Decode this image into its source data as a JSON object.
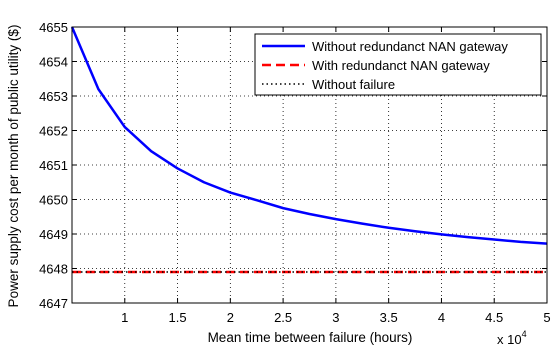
{
  "chart_data": {
    "type": "line",
    "title": "",
    "xlabel": "Mean time between failure (hours)",
    "ylabel": "Power supply cost per month of public utility ($)",
    "x_multiplier": "x 10",
    "x_multiplier_exponent": "4",
    "xlim": [
      5000,
      50000
    ],
    "ylim": [
      4647,
      4655
    ],
    "xticks": [
      10000,
      15000,
      20000,
      25000,
      30000,
      35000,
      40000,
      45000,
      50000
    ],
    "xtick_labels": [
      "1",
      "1.5",
      "2",
      "2.5",
      "3",
      "3.5",
      "4",
      "4.5",
      "5"
    ],
    "yticks": [
      4647,
      4648,
      4649,
      4650,
      4651,
      4652,
      4653,
      4654,
      4655
    ],
    "ytick_labels": [
      "4647",
      "4648",
      "4649",
      "4650",
      "4651",
      "4652",
      "4653",
      "4654",
      "4655"
    ],
    "grid": true,
    "legend_position": "top-right",
    "series": [
      {
        "name": "Without redundanct NAN gateway",
        "color": "#0000ff",
        "style": "solid",
        "x": [
          5000,
          7500,
          10000,
          12500,
          15000,
          17500,
          20000,
          22500,
          25000,
          27500,
          30000,
          32500,
          35000,
          37500,
          40000,
          42500,
          45000,
          47500,
          50000
        ],
        "y": [
          4655.0,
          4653.2,
          4652.1,
          4651.4,
          4650.9,
          4650.5,
          4650.2,
          4649.98,
          4649.75,
          4649.58,
          4649.43,
          4649.3,
          4649.18,
          4649.08,
          4648.99,
          4648.91,
          4648.84,
          4648.77,
          4648.72
        ]
      },
      {
        "name": "With redundanct NAN gateway",
        "color": "#ff0000",
        "style": "dashed",
        "x": [
          5000,
          50000
        ],
        "y": [
          4647.9,
          4647.9
        ]
      },
      {
        "name": "Without failure",
        "color": "#000000",
        "style": "dotted",
        "x": [
          5000,
          50000
        ],
        "y": [
          4647.9,
          4647.9
        ]
      }
    ]
  }
}
